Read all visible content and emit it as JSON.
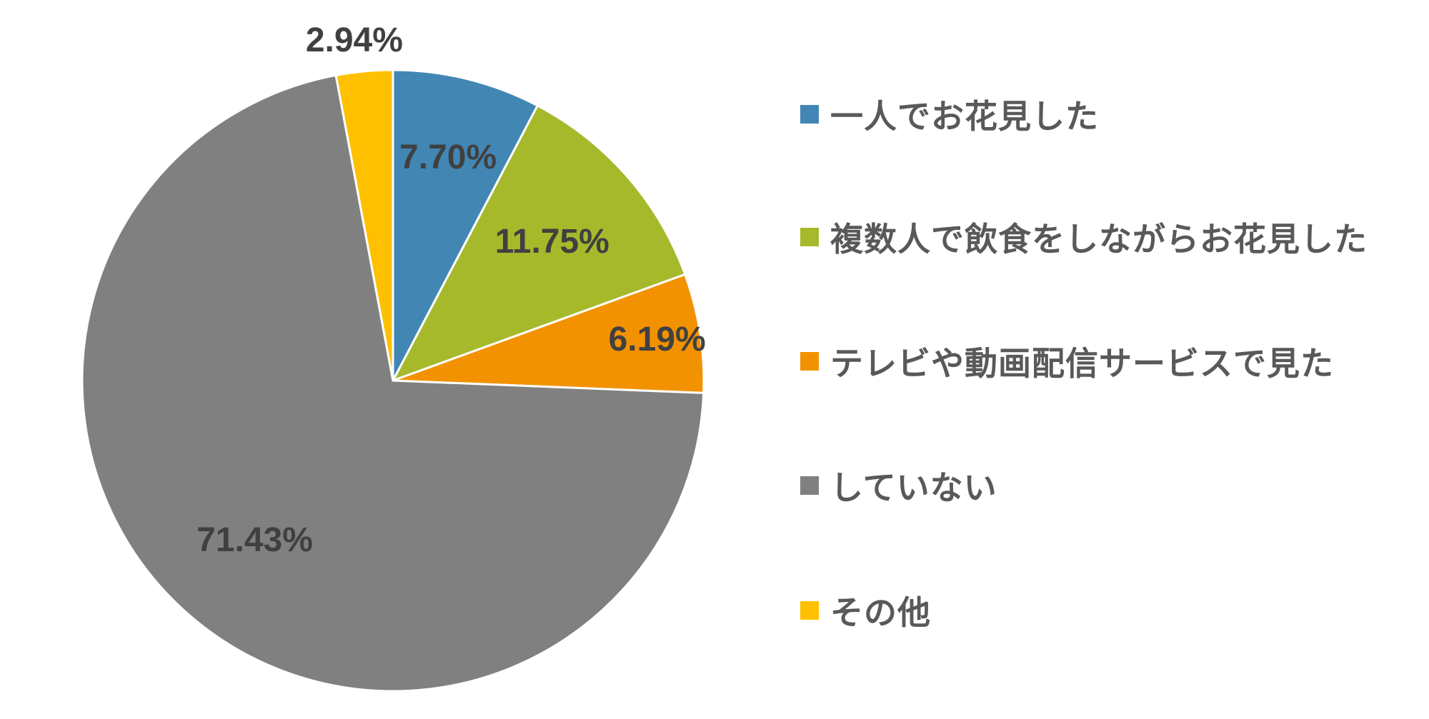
{
  "chart_data": {
    "type": "pie",
    "title": "",
    "categories": [
      "一人でお花見した",
      "複数人で飲食をしながらお花見した",
      "テレビや動画配信サービスで見た",
      "していない",
      "その他"
    ],
    "values": [
      7.7,
      11.75,
      6.19,
      71.43,
      2.94
    ],
    "value_labels": [
      "7.70%",
      "11.75%",
      "6.19%",
      "71.43%",
      "2.94%"
    ],
    "colors": [
      "#4287B4",
      "#A5B92B",
      "#F39200",
      "#808080",
      "#FFC000"
    ],
    "start_angle": "12 o'clock",
    "direction": "clockwise",
    "legend": {
      "placement": "right",
      "items": [
        {
          "label": "一人でお花見した",
          "color": "#4287B4"
        },
        {
          "label": "複数人で飲食をしながらお花見した",
          "color": "#A5B92B"
        },
        {
          "label": "テレビや動画配信サービスで見た",
          "color": "#F39200"
        },
        {
          "label": "していない",
          "color": "#808080"
        },
        {
          "label": "その他",
          "color": "#FFC000"
        }
      ]
    }
  }
}
